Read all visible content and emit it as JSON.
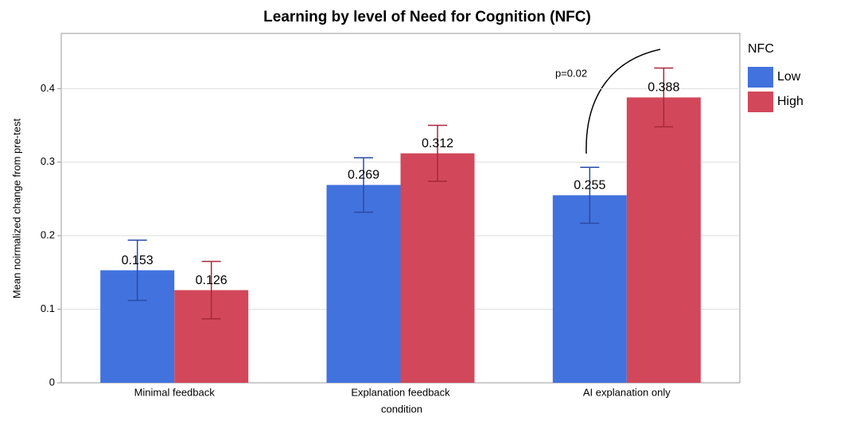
{
  "chart_data": {
    "type": "bar",
    "title": "Learning by level of Need for Cognition (NFC)",
    "x_label": "condition",
    "y_label": "Mean noirmalized change from pre-test",
    "categories": [
      "Minimal feedback",
      "Explanation feedback",
      "AI explanation only"
    ],
    "series": [
      {
        "name": "Low",
        "color": "#4272dd",
        "values": [
          0.153,
          0.269,
          0.255
        ],
        "errors": [
          0.041,
          0.037,
          0.038
        ],
        "error_color": "#2a4aa8"
      },
      {
        "name": "High",
        "color": "#d2485a",
        "values": [
          0.126,
          0.312,
          0.388
        ],
        "errors": [
          0.039,
          0.038,
          0.04
        ],
        "error_color": "#a8283a"
      }
    ],
    "legend_title": "NFC",
    "annotation": "p=0.02",
    "ylim": [
      0,
      0.475
    ],
    "yticks": [
      0,
      0.1,
      0.2,
      0.3,
      0.4
    ],
    "grid": true
  }
}
